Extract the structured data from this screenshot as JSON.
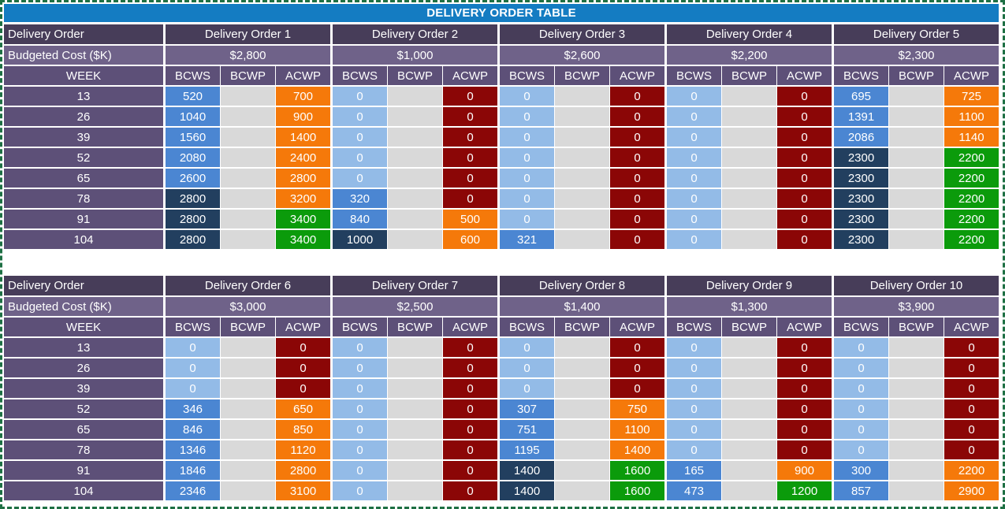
{
  "title": "DELIVERY ORDER TABLE",
  "labels": {
    "delivery_order": "Delivery Order",
    "budgeted_cost": "Budgeted Cost ($K)",
    "week": "WEEK",
    "columns": [
      "BCWS",
      "BCWP",
      "ACWP"
    ]
  },
  "weeks": [
    13,
    26,
    39,
    52,
    65,
    78,
    91,
    104
  ],
  "colors": {
    "title_bg": "#147CC2",
    "header_dark_purple": "#473D59",
    "header_mid_purple": "#6F6289",
    "header_purple": "#5D5078",
    "light_blue": "#93BBE7",
    "mid_blue": "#4B86D2",
    "navy": "#223F5F",
    "gray": "#D9D9D9",
    "orange": "#F5790A",
    "dark_red": "#8B0606",
    "green": "#0B9B0B",
    "ants_green": "#1E7044"
  },
  "color_codes": {
    "L": "light_blue",
    "M": "mid_blue",
    "N": "navy",
    "R": "dark_red",
    "O": "orange",
    "G": "green"
  },
  "blocks": [
    {
      "orders": [
        {
          "name": "Delivery Order 1",
          "budget": "$2,800",
          "bcws": [
            520,
            1040,
            1560,
            2080,
            2600,
            2800,
            2800,
            2800
          ],
          "bcws_c": [
            "M",
            "M",
            "M",
            "M",
            "M",
            "N",
            "N",
            "N"
          ],
          "acwp": [
            700,
            900,
            1400,
            2400,
            2800,
            3200,
            3400,
            3400
          ],
          "acwp_c": [
            "O",
            "O",
            "O",
            "O",
            "O",
            "O",
            "G",
            "G"
          ]
        },
        {
          "name": "Delivery Order 2",
          "budget": "$1,000",
          "bcws": [
            0,
            0,
            0,
            0,
            0,
            320,
            840,
            1000
          ],
          "bcws_c": [
            "L",
            "L",
            "L",
            "L",
            "L",
            "M",
            "M",
            "N"
          ],
          "acwp": [
            0,
            0,
            0,
            0,
            0,
            0,
            500,
            600
          ],
          "acwp_c": [
            "R",
            "R",
            "R",
            "R",
            "R",
            "R",
            "O",
            "O"
          ]
        },
        {
          "name": "Delivery Order 3",
          "budget": "$2,600",
          "bcws": [
            0,
            0,
            0,
            0,
            0,
            0,
            0,
            321
          ],
          "bcws_c": [
            "L",
            "L",
            "L",
            "L",
            "L",
            "L",
            "L",
            "M"
          ],
          "acwp": [
            0,
            0,
            0,
            0,
            0,
            0,
            0,
            0
          ],
          "acwp_c": [
            "R",
            "R",
            "R",
            "R",
            "R",
            "R",
            "R",
            "R"
          ]
        },
        {
          "name": "Delivery Order 4",
          "budget": "$2,200",
          "bcws": [
            0,
            0,
            0,
            0,
            0,
            0,
            0,
            0
          ],
          "bcws_c": [
            "L",
            "L",
            "L",
            "L",
            "L",
            "L",
            "L",
            "L"
          ],
          "acwp": [
            0,
            0,
            0,
            0,
            0,
            0,
            0,
            0
          ],
          "acwp_c": [
            "R",
            "R",
            "R",
            "R",
            "R",
            "R",
            "R",
            "R"
          ]
        },
        {
          "name": "Delivery Order 5",
          "budget": "$2,300",
          "bcws": [
            695,
            1391,
            2086,
            2300,
            2300,
            2300,
            2300,
            2300
          ],
          "bcws_c": [
            "M",
            "M",
            "M",
            "N",
            "N",
            "N",
            "N",
            "N"
          ],
          "acwp": [
            725,
            1100,
            1140,
            2200,
            2200,
            2200,
            2200,
            2200
          ],
          "acwp_c": [
            "O",
            "O",
            "O",
            "G",
            "G",
            "G",
            "G",
            "G"
          ]
        }
      ]
    },
    {
      "orders": [
        {
          "name": "Delivery Order 6",
          "budget": "$3,000",
          "bcws": [
            0,
            0,
            0,
            346,
            846,
            1346,
            1846,
            2346
          ],
          "bcws_c": [
            "L",
            "L",
            "L",
            "M",
            "M",
            "M",
            "M",
            "M"
          ],
          "acwp": [
            0,
            0,
            0,
            650,
            850,
            1120,
            2800,
            3100
          ],
          "acwp_c": [
            "R",
            "R",
            "R",
            "O",
            "O",
            "O",
            "O",
            "O"
          ]
        },
        {
          "name": "Delivery Order 7",
          "budget": "$2,500",
          "bcws": [
            0,
            0,
            0,
            0,
            0,
            0,
            0,
            0
          ],
          "bcws_c": [
            "L",
            "L",
            "L",
            "L",
            "L",
            "L",
            "L",
            "L"
          ],
          "acwp": [
            0,
            0,
            0,
            0,
            0,
            0,
            0,
            0
          ],
          "acwp_c": [
            "R",
            "R",
            "R",
            "R",
            "R",
            "R",
            "R",
            "R"
          ]
        },
        {
          "name": "Delivery Order 8",
          "budget": "$1,400",
          "bcws": [
            0,
            0,
            0,
            307,
            751,
            1195,
            1400,
            1400
          ],
          "bcws_c": [
            "L",
            "L",
            "L",
            "M",
            "M",
            "M",
            "N",
            "N"
          ],
          "acwp": [
            0,
            0,
            0,
            750,
            1100,
            1400,
            1600,
            1600
          ],
          "acwp_c": [
            "R",
            "R",
            "R",
            "O",
            "O",
            "O",
            "G",
            "G"
          ]
        },
        {
          "name": "Delivery Order 9",
          "budget": "$1,300",
          "bcws": [
            0,
            0,
            0,
            0,
            0,
            0,
            165,
            473
          ],
          "bcws_c": [
            "L",
            "L",
            "L",
            "L",
            "L",
            "L",
            "M",
            "M"
          ],
          "acwp": [
            0,
            0,
            0,
            0,
            0,
            0,
            900,
            1200
          ],
          "acwp_c": [
            "R",
            "R",
            "R",
            "R",
            "R",
            "R",
            "O",
            "G"
          ]
        },
        {
          "name": "Delivery Order 10",
          "budget": "$3,900",
          "bcws": [
            0,
            0,
            0,
            0,
            0,
            0,
            300,
            857
          ],
          "bcws_c": [
            "L",
            "L",
            "L",
            "L",
            "L",
            "L",
            "M",
            "M"
          ],
          "acwp": [
            0,
            0,
            0,
            0,
            0,
            0,
            2200,
            2900
          ],
          "acwp_c": [
            "R",
            "R",
            "R",
            "R",
            "R",
            "R",
            "O",
            "O"
          ]
        }
      ]
    }
  ]
}
